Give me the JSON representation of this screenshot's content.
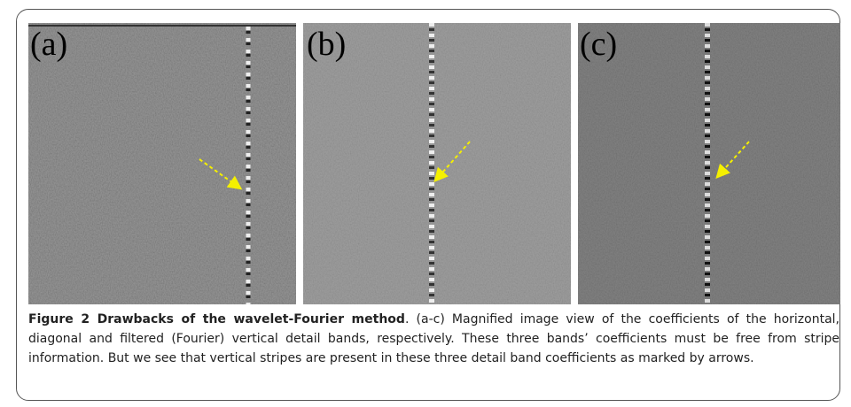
{
  "panels": [
    {
      "label": "(a)"
    },
    {
      "label": "(b)"
    },
    {
      "label": "(c)"
    }
  ],
  "caption": {
    "title": "Figure 2 Drawbacks of the wavelet-Fourier method",
    "text": ". (a-c) Magnified image view of the coefficients of the horizontal, diagonal and filtered (Fourier) vertical detail bands, respectively. These three bands’ coefficients must be free from stripe information. But we see that vertical stripes are present in these three detail band coefficients as marked by arrows."
  }
}
